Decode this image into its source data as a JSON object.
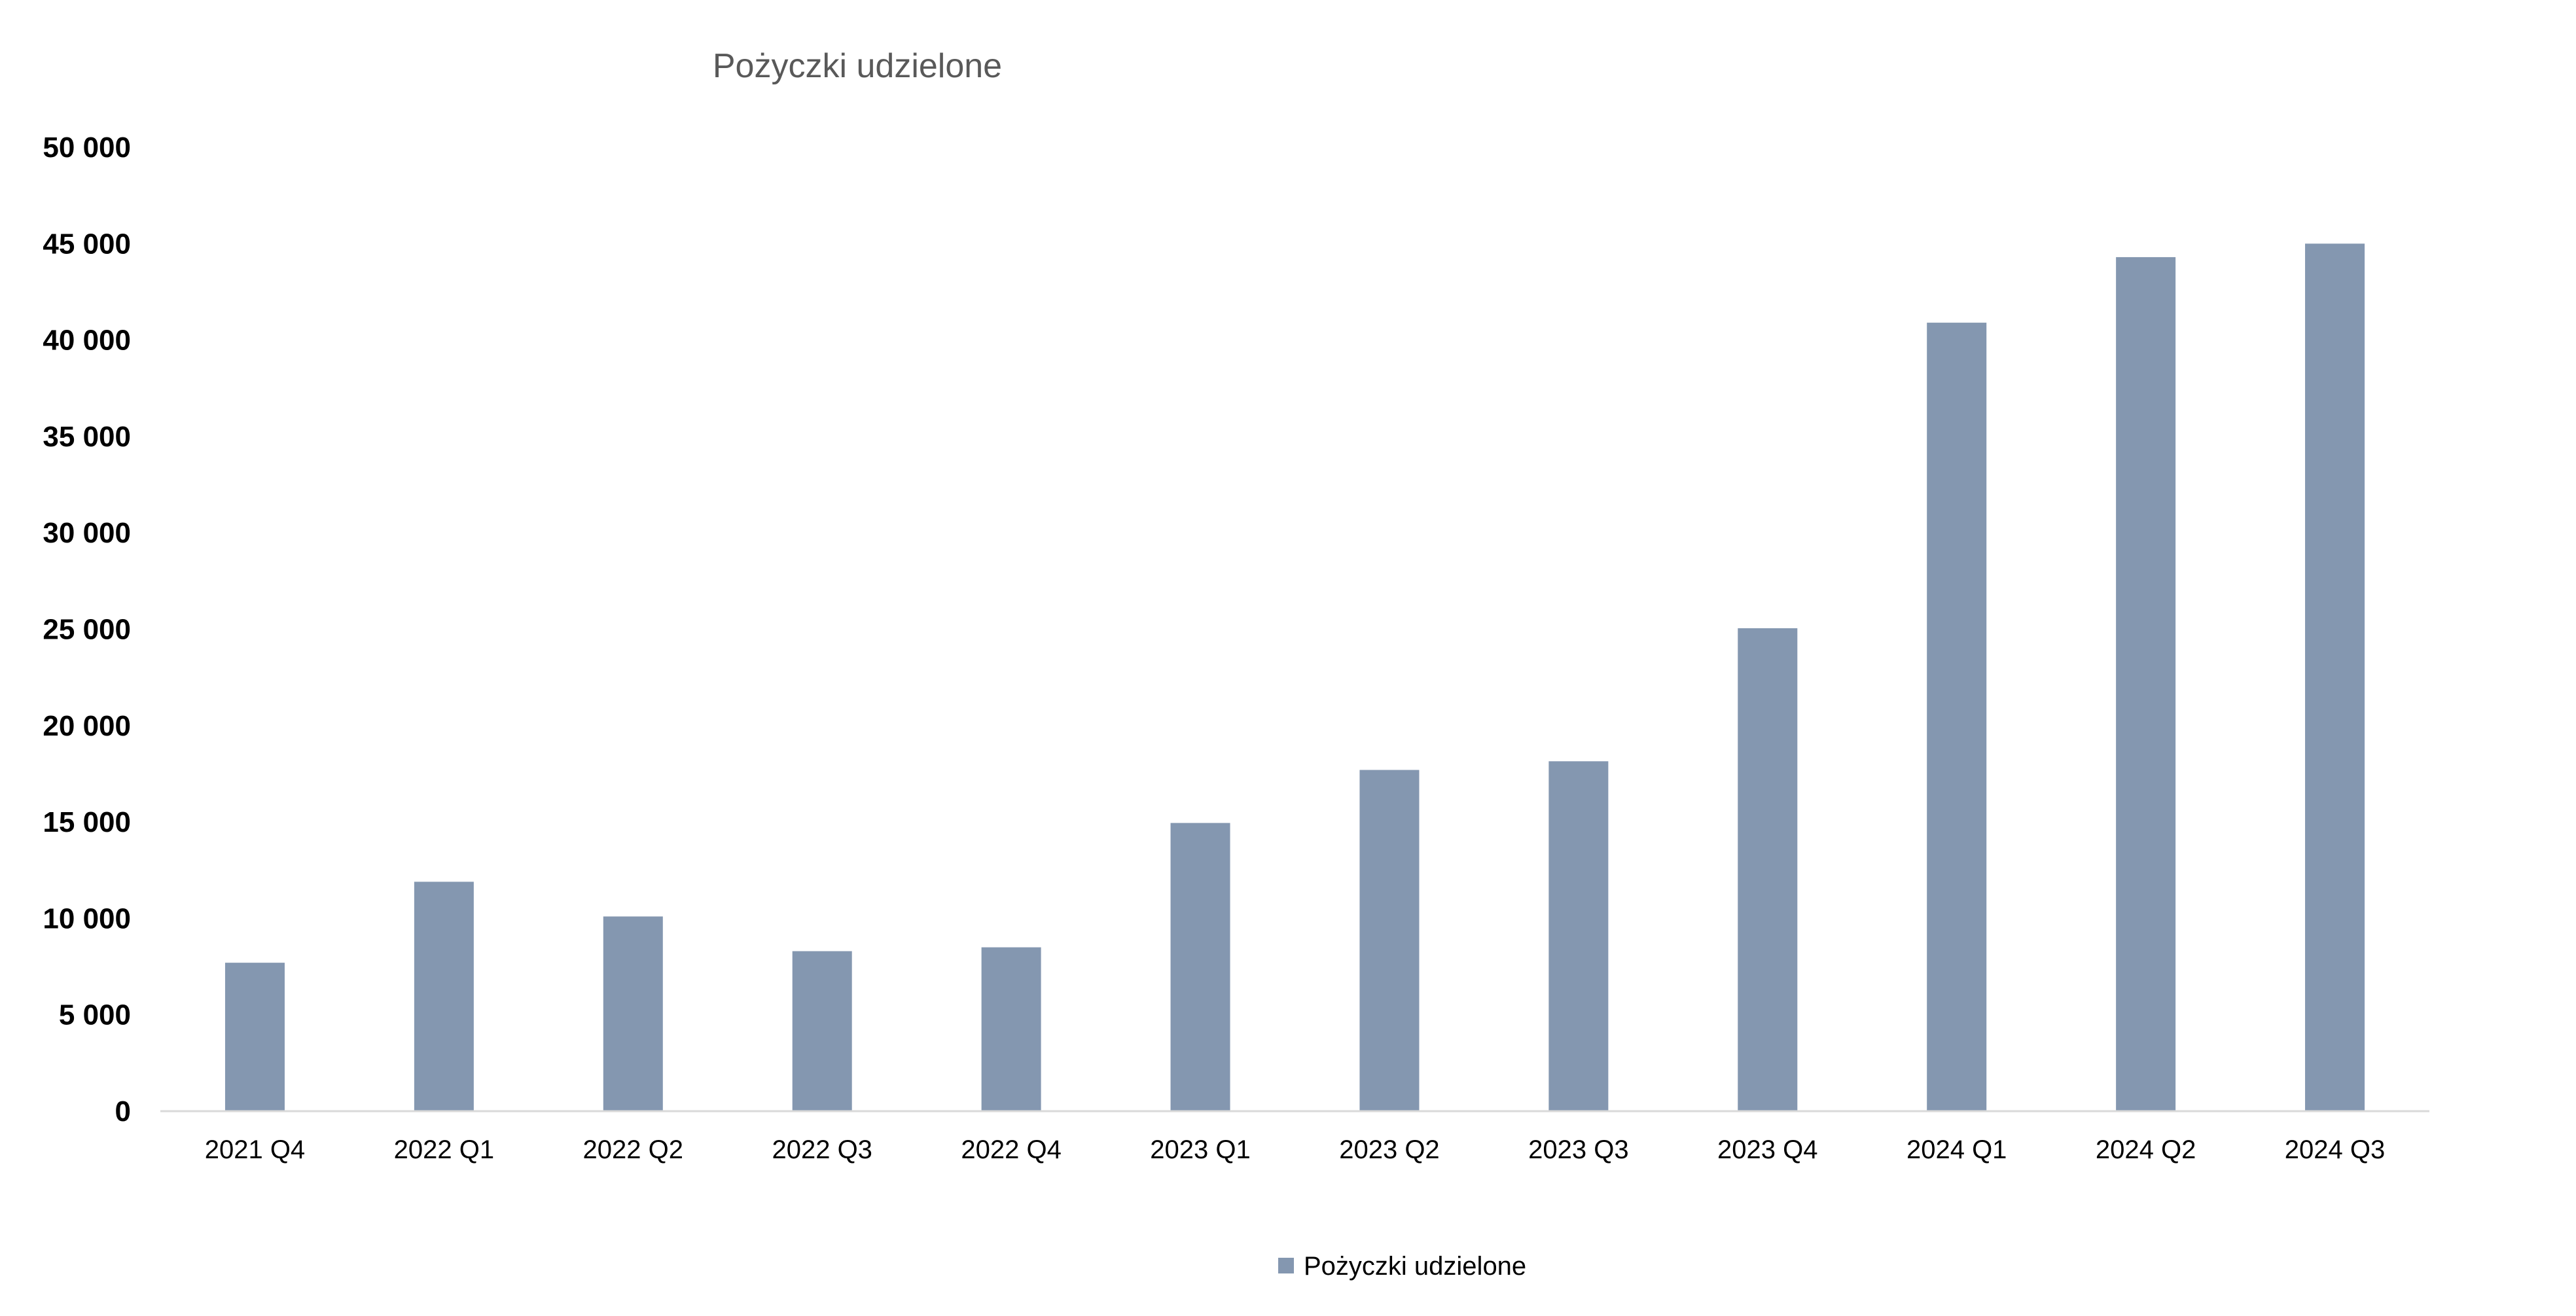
{
  "chart_data": {
    "type": "bar",
    "title": "Pożyczki udzielone",
    "xlabel": "",
    "ylabel": "",
    "categories": [
      "2021 Q4",
      "2022 Q1",
      "2022 Q2",
      "2022 Q3",
      "2022 Q4",
      "2023 Q1",
      "2023 Q2",
      "2023 Q3",
      "2023 Q4",
      "2024 Q1",
      "2024 Q2",
      "2024 Q3"
    ],
    "series": [
      {
        "name": "Pożyczki udzielone",
        "color": "#8497B0",
        "values": [
          7700,
          11900,
          10100,
          8300,
          8500,
          14950,
          17700,
          18150,
          25050,
          40900,
          44300,
          45000
        ]
      }
    ],
    "ylim": [
      0,
      50000
    ],
    "yticks": [
      0,
      5000,
      10000,
      15000,
      20000,
      25000,
      30000,
      35000,
      40000,
      45000,
      50000
    ],
    "ytick_labels": [
      "0",
      "5 000",
      "10 000",
      "15 000",
      "20 000",
      "25 000",
      "30 000",
      "35 000",
      "40 000",
      "45 000",
      "50 000"
    ],
    "grid": false,
    "legend_position": "bottom",
    "axis_color": "#D9D9D9"
  }
}
